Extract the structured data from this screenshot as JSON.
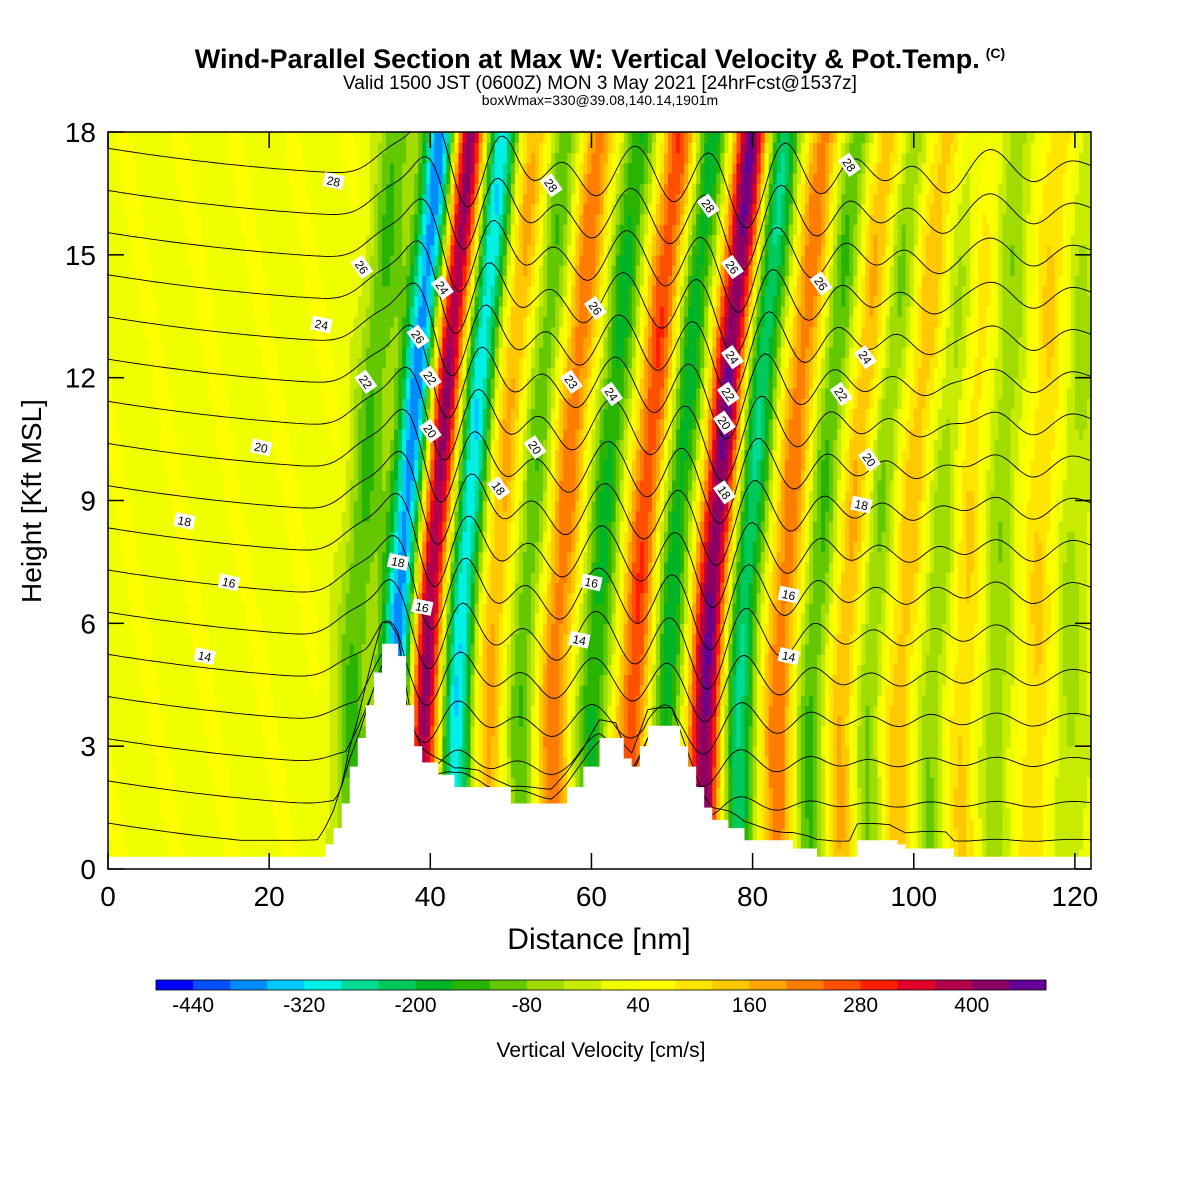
{
  "title": "Wind-Parallel Section at Max W: Vertical Velocity & Pot.Temp.",
  "title_mark": "(C)",
  "valid_line": "Valid 1500 JST (0600Z) MON 3 May 2021 [24hrFcst@1537z]",
  "box_line": "boxWmax=330@39.08,140.14,1901m",
  "chart_data": {
    "type": "heatmap",
    "xlabel": "Distance [nm]",
    "ylabel": "Height [Kft MSL]",
    "xlim": [
      0,
      122
    ],
    "ylim": [
      0,
      18
    ],
    "x_ticks": [
      0,
      20,
      40,
      60,
      80,
      100,
      120
    ],
    "y_ticks": [
      0,
      3,
      6,
      9,
      12,
      15,
      18
    ],
    "colorbar": {
      "label": "Vertical Velocity [cm/s]",
      "tick_labels": [
        "-440",
        "-320",
        "-200",
        "-80",
        "40",
        "160",
        "280",
        "400"
      ],
      "bins": [
        -480,
        -440,
        -400,
        -360,
        -320,
        -280,
        -240,
        -200,
        -160,
        -120,
        -80,
        -40,
        0,
        40,
        80,
        120,
        160,
        200,
        240,
        280,
        320,
        360,
        400,
        440
      ],
      "colors": [
        "#0000ff",
        "#0050ff",
        "#008cff",
        "#00c8ff",
        "#00f0e6",
        "#00dc96",
        "#00c85a",
        "#00b428",
        "#28b400",
        "#64c800",
        "#a0dc00",
        "#c8ec00",
        "#f0ff00",
        "#ffff00",
        "#ffe600",
        "#ffc800",
        "#ffa500",
        "#ff7d00",
        "#ff5000",
        "#ff1e00",
        "#e10028",
        "#b4004b",
        "#8c0064",
        "#640096"
      ]
    },
    "vertical_velocity_features": [
      {
        "x": 30,
        "w": -150
      },
      {
        "x": 35.5,
        "w": -440
      },
      {
        "x": 39,
        "w": 420
      },
      {
        "x": 43,
        "w": -360
      },
      {
        "x": 47,
        "w": 150
      },
      {
        "x": 51,
        "w": -150
      },
      {
        "x": 55,
        "w": 200
      },
      {
        "x": 60,
        "w": -200
      },
      {
        "x": 65,
        "w": 250
      },
      {
        "x": 69,
        "w": -220
      },
      {
        "x": 74,
        "w": 420
      },
      {
        "x": 78,
        "w": -280
      },
      {
        "x": 83,
        "w": 200
      },
      {
        "x": 87,
        "w": -160
      },
      {
        "x": 91,
        "w": 150
      },
      {
        "x": 94,
        "w": -130
      },
      {
        "x": 98,
        "w": 120
      },
      {
        "x": 102,
        "w": -110
      },
      {
        "x": 106,
        "w": 100
      },
      {
        "x": 110,
        "w": -100
      },
      {
        "x": 115,
        "w": 90
      },
      {
        "x": 119,
        "w": -80
      }
    ],
    "terrain": [
      [
        0,
        0.3
      ],
      [
        26,
        0.3
      ],
      [
        27,
        0.6
      ],
      [
        28,
        1.0
      ],
      [
        29,
        1.6
      ],
      [
        30,
        2.5
      ],
      [
        31,
        3.2
      ],
      [
        32,
        4.0
      ],
      [
        33,
        4.8
      ],
      [
        34,
        5.5
      ],
      [
        35,
        5.5
      ],
      [
        36,
        5.2
      ],
      [
        37,
        4.0
      ],
      [
        38,
        3.0
      ],
      [
        39,
        2.6
      ],
      [
        41,
        2.3
      ],
      [
        43,
        2.0
      ],
      [
        46,
        2.0
      ],
      [
        50,
        1.6
      ],
      [
        55,
        1.6
      ],
      [
        57,
        2.0
      ],
      [
        59,
        2.5
      ],
      [
        61,
        3.2
      ],
      [
        63,
        3.2
      ],
      [
        64,
        2.7
      ],
      [
        65,
        2.5
      ],
      [
        66,
        3.0
      ],
      [
        67,
        3.5
      ],
      [
        70,
        3.5
      ],
      [
        71,
        3.0
      ],
      [
        72,
        2.5
      ],
      [
        73,
        2.0
      ],
      [
        74,
        1.5
      ],
      [
        75,
        1.2
      ],
      [
        77,
        1.0
      ],
      [
        79,
        0.7
      ],
      [
        85,
        0.5
      ],
      [
        88,
        0.3
      ],
      [
        92,
        0.3
      ],
      [
        93,
        0.7
      ],
      [
        97,
        0.7
      ],
      [
        98,
        0.6
      ],
      [
        99,
        0.5
      ],
      [
        104,
        0.5
      ],
      [
        105,
        0.3
      ],
      [
        122,
        0.3
      ]
    ],
    "theta_contours": {
      "levels": [
        13,
        14,
        15,
        16,
        17,
        18,
        19,
        20,
        21,
        22,
        23,
        24,
        25,
        26,
        27,
        28,
        29
      ],
      "labels": [
        {
          "text": "28",
          "x": 28,
          "y": 16.8
        },
        {
          "text": "28",
          "x": 55,
          "y": 16.7
        },
        {
          "text": "28",
          "x": 74.5,
          "y": 16.2
        },
        {
          "text": "28",
          "x": 92,
          "y": 17.2
        },
        {
          "text": "26",
          "x": 31.5,
          "y": 14.7
        },
        {
          "text": "24",
          "x": 26.5,
          "y": 13.3
        },
        {
          "text": "24",
          "x": 41.5,
          "y": 14.2
        },
        {
          "text": "26",
          "x": 38.5,
          "y": 13.0
        },
        {
          "text": "26",
          "x": 60.5,
          "y": 13.7
        },
        {
          "text": "26",
          "x": 77.5,
          "y": 14.7
        },
        {
          "text": "26",
          "x": 88.5,
          "y": 14.3
        },
        {
          "text": "24",
          "x": 94,
          "y": 12.5
        },
        {
          "text": "22",
          "x": 32,
          "y": 11.9
        },
        {
          "text": "22",
          "x": 40,
          "y": 12.0
        },
        {
          "text": "23",
          "x": 57.5,
          "y": 11.9
        },
        {
          "text": "24",
          "x": 62.5,
          "y": 11.6
        },
        {
          "text": "24",
          "x": 77.5,
          "y": 12.5
        },
        {
          "text": "22",
          "x": 77,
          "y": 11.6
        },
        {
          "text": "22",
          "x": 91,
          "y": 11.6
        },
        {
          "text": "20",
          "x": 19,
          "y": 10.3
        },
        {
          "text": "20",
          "x": 40,
          "y": 10.7
        },
        {
          "text": "20",
          "x": 53,
          "y": 10.3
        },
        {
          "text": "20",
          "x": 76.5,
          "y": 10.9
        },
        {
          "text": "20",
          "x": 94.5,
          "y": 10.0
        },
        {
          "text": "18",
          "x": 48.5,
          "y": 9.3
        },
        {
          "text": "18",
          "x": 76.5,
          "y": 9.2
        },
        {
          "text": "18",
          "x": 93.5,
          "y": 8.9
        },
        {
          "text": "18",
          "x": 9.5,
          "y": 8.5
        },
        {
          "text": "18",
          "x": 36,
          "y": 7.5
        },
        {
          "text": "16",
          "x": 15,
          "y": 7.0
        },
        {
          "text": "16",
          "x": 39,
          "y": 6.4
        },
        {
          "text": "16",
          "x": 60,
          "y": 7.0
        },
        {
          "text": "16",
          "x": 84.5,
          "y": 6.7
        },
        {
          "text": "14",
          "x": 12,
          "y": 5.2
        },
        {
          "text": "14",
          "x": 58.5,
          "y": 5.6
        },
        {
          "text": "14",
          "x": 84.5,
          "y": 5.2
        }
      ]
    }
  }
}
